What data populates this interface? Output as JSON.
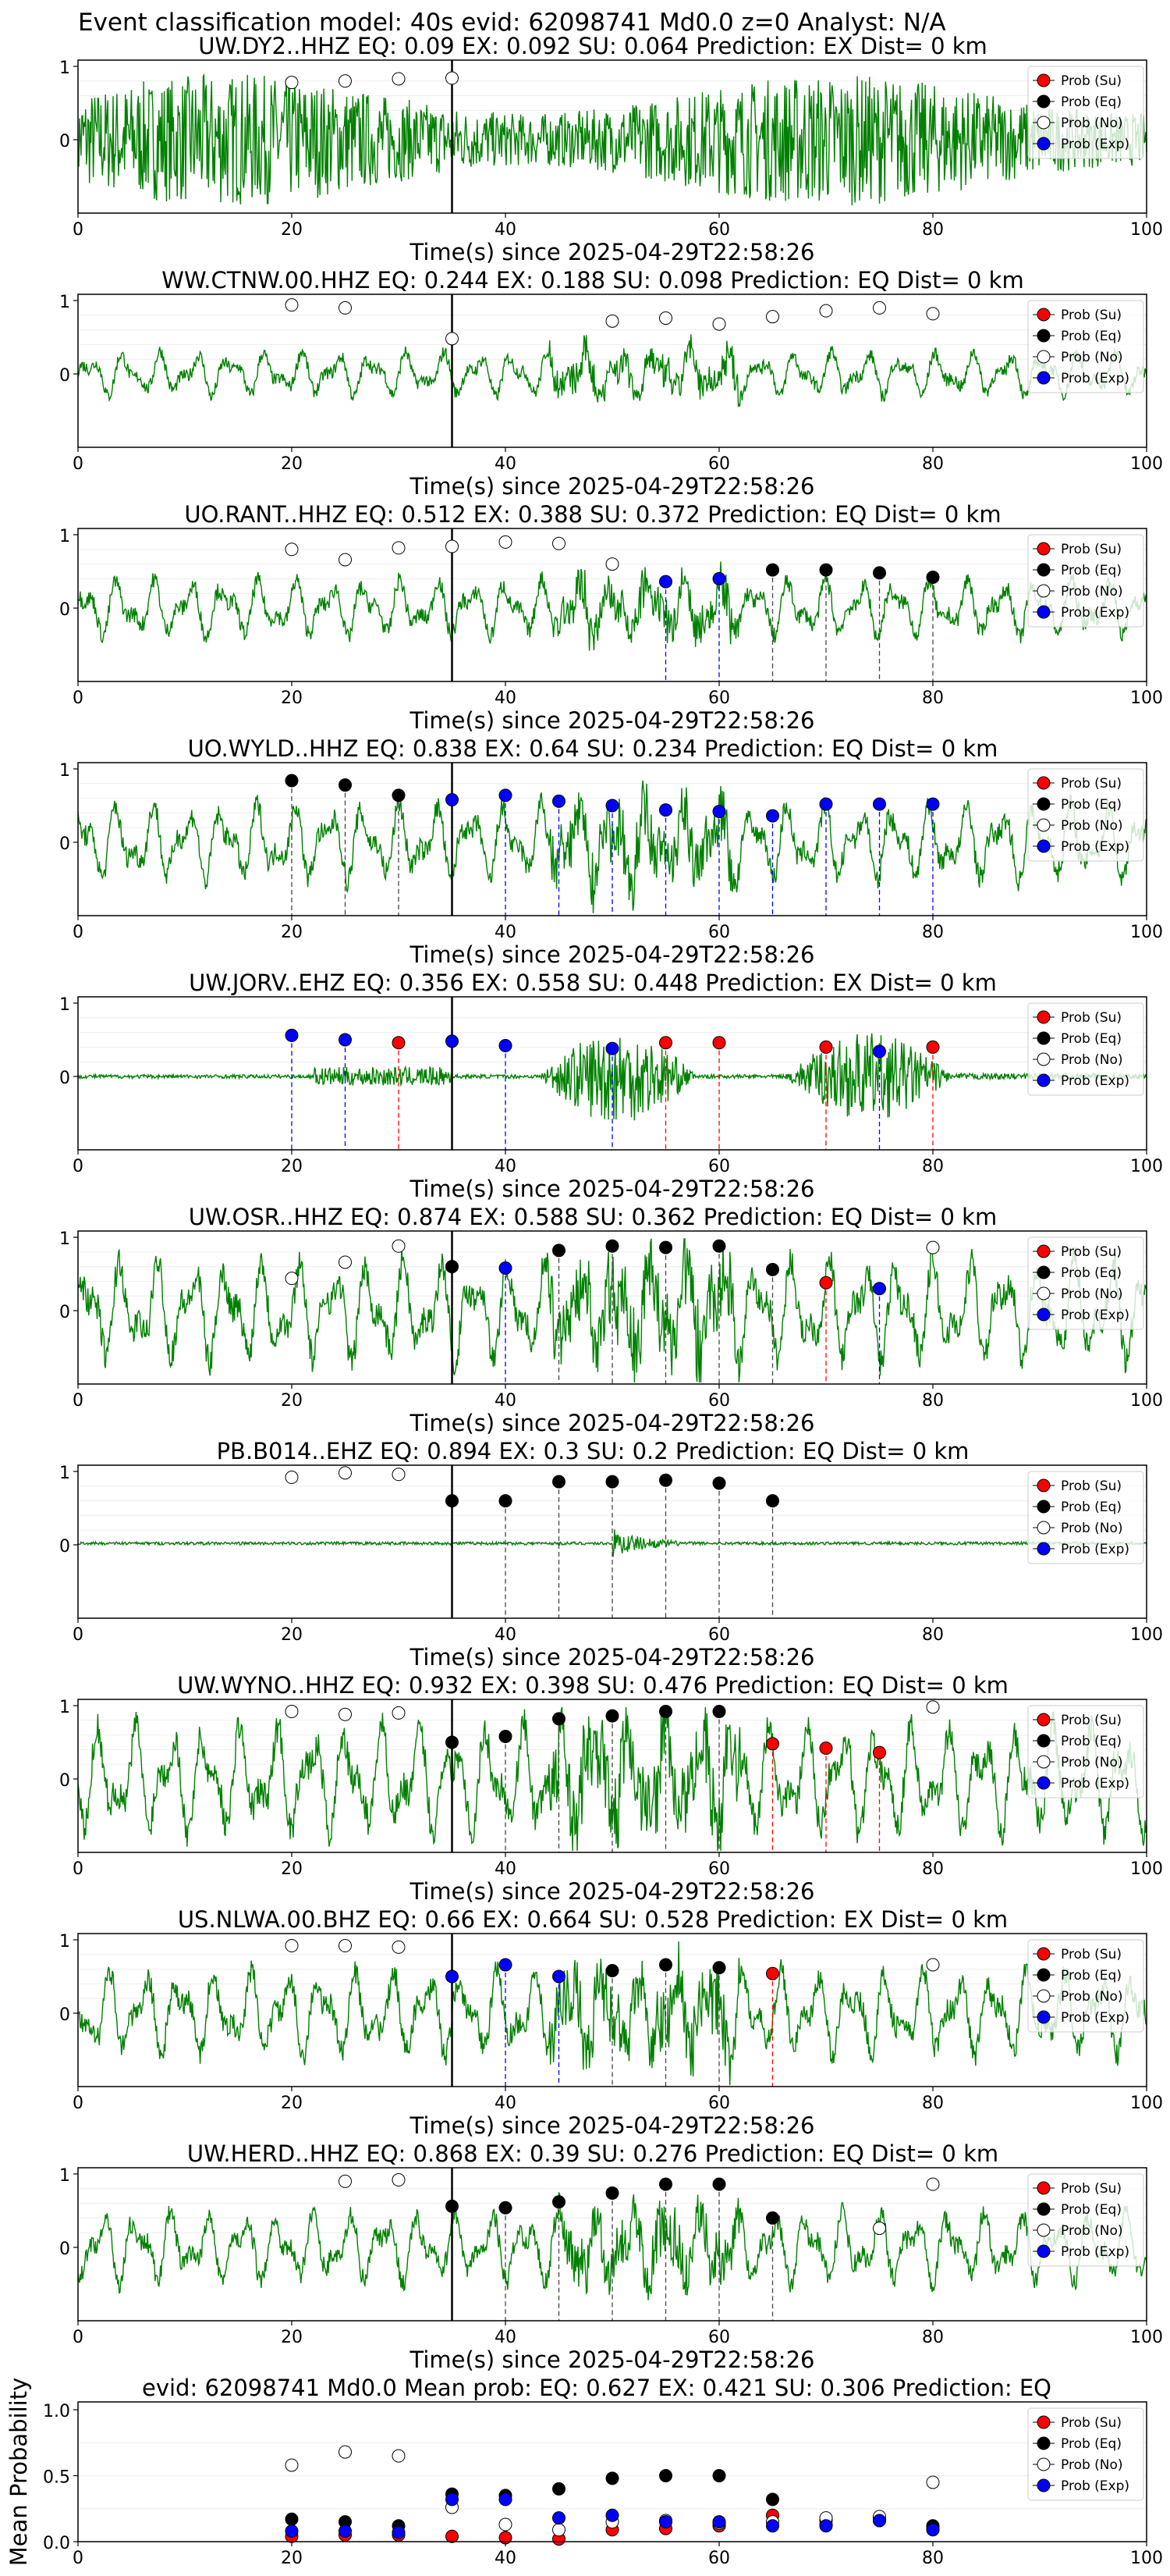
{
  "suptitle": "Event classification model: 40s evid: 62098741 Md0.0 z=0 Analyst: N/A",
  "legend": [
    "Prob (Su)",
    "Prob (Eq)",
    "Prob (No)",
    "Prob (Exp)"
  ],
  "colors": {
    "su": "#ff0000",
    "eq": "#000000",
    "no": "#ffffff",
    "exp": "#0000ff",
    "trace": "#008000",
    "arrival": "#000000"
  },
  "xlabel": "Time(s) since 2025-04-29T22:58:26",
  "xticks": [
    "0",
    "20",
    "40",
    "60",
    "80",
    "100"
  ],
  "yticks": [
    "0",
    "1"
  ],
  "chart_data": [
    {
      "type": "line",
      "station": "UW.DY2..HHZ",
      "title": "UW.DY2..HHZ   EQ: 0.09   EX: 0.092   SU: 0.064   Prediction: EX    Dist= 0 km",
      "xlim": [
        0,
        100
      ],
      "ylim": [
        -1,
        1
      ],
      "arrival": 35,
      "style": "dense",
      "amp": 0.9,
      "points": [
        {
          "x": 20,
          "y": 0.78,
          "c": "no"
        },
        {
          "x": 25,
          "y": 0.8,
          "c": "no"
        },
        {
          "x": 30,
          "y": 0.83,
          "c": "no"
        },
        {
          "x": 35,
          "y": 0.84,
          "c": "no"
        }
      ]
    },
    {
      "type": "line",
      "station": "WW.CTNW.00.HHZ",
      "title": "WW.CTNW.00.HHZ   EQ: 0.244  EX: 0.188  SU: 0.098   Prediction: EQ    Dist= 0 km",
      "xlim": [
        0,
        100
      ],
      "ylim": [
        -1,
        1
      ],
      "arrival": 35,
      "style": "wavy",
      "amp": 0.35,
      "points": [
        {
          "x": 20,
          "y": 0.94,
          "c": "no"
        },
        {
          "x": 25,
          "y": 0.9,
          "c": "no"
        },
        {
          "x": 35,
          "y": 0.48,
          "c": "no"
        },
        {
          "x": 50,
          "y": 0.72,
          "c": "no"
        },
        {
          "x": 55,
          "y": 0.76,
          "c": "no"
        },
        {
          "x": 60,
          "y": 0.68,
          "c": "no"
        },
        {
          "x": 65,
          "y": 0.78,
          "c": "no"
        },
        {
          "x": 70,
          "y": 0.86,
          "c": "no"
        },
        {
          "x": 75,
          "y": 0.9,
          "c": "no"
        },
        {
          "x": 80,
          "y": 0.82,
          "c": "no"
        }
      ]
    },
    {
      "type": "line",
      "station": "UO.RANT..HHZ",
      "title": "UO.RANT..HHZ   EQ: 0.512  EX: 0.388  SU: 0.372   Prediction: EQ    Dist= 0 km",
      "xlim": [
        0,
        100
      ],
      "ylim": [
        -1,
        1
      ],
      "arrival": 35,
      "style": "wavy",
      "amp": 0.45,
      "points": [
        {
          "x": 20,
          "y": 0.8,
          "c": "no"
        },
        {
          "x": 25,
          "y": 0.66,
          "c": "no"
        },
        {
          "x": 30,
          "y": 0.82,
          "c": "no"
        },
        {
          "x": 35,
          "y": 0.84,
          "c": "no"
        },
        {
          "x": 40,
          "y": 0.9,
          "c": "no"
        },
        {
          "x": 45,
          "y": 0.88,
          "c": "no"
        },
        {
          "x": 50,
          "y": 0.6,
          "c": "no"
        },
        {
          "x": 55,
          "y": 0.36,
          "c": "exp"
        },
        {
          "x": 60,
          "y": 0.4,
          "c": "exp"
        },
        {
          "x": 65,
          "y": 0.52,
          "c": "eq"
        },
        {
          "x": 70,
          "y": 0.52,
          "c": "eq"
        },
        {
          "x": 75,
          "y": 0.48,
          "c": "eq"
        },
        {
          "x": 80,
          "y": 0.42,
          "c": "eq"
        }
      ]
    },
    {
      "type": "line",
      "station": "UO.WYLD..HHZ",
      "title": "UO.WYLD..HHZ   EQ: 0.838  EX: 0.64  SU: 0.234   Prediction: EQ    Dist= 0 km",
      "xlim": [
        0,
        100
      ],
      "ylim": [
        -1,
        1
      ],
      "arrival": 35,
      "style": "wavy",
      "amp": 0.6,
      "points": [
        {
          "x": 20,
          "y": 0.84,
          "c": "eq"
        },
        {
          "x": 25,
          "y": 0.78,
          "c": "eq"
        },
        {
          "x": 30,
          "y": 0.64,
          "c": "eq"
        },
        {
          "x": 35,
          "y": 0.58,
          "c": "exp"
        },
        {
          "x": 40,
          "y": 0.64,
          "c": "exp"
        },
        {
          "x": 45,
          "y": 0.56,
          "c": "exp"
        },
        {
          "x": 50,
          "y": 0.5,
          "c": "exp"
        },
        {
          "x": 55,
          "y": 0.44,
          "c": "exp"
        },
        {
          "x": 60,
          "y": 0.42,
          "c": "exp"
        },
        {
          "x": 65,
          "y": 0.36,
          "c": "exp"
        },
        {
          "x": 70,
          "y": 0.52,
          "c": "exp"
        },
        {
          "x": 75,
          "y": 0.52,
          "c": "exp"
        },
        {
          "x": 80,
          "y": 0.52,
          "c": "exp"
        }
      ]
    },
    {
      "type": "line",
      "station": "UW.JORV..EHZ",
      "title": "UW.JORV..EHZ   EQ: 0.356  EX: 0.558  SU: 0.448   Prediction: EX    Dist= 0 km",
      "xlim": [
        0,
        100
      ],
      "ylim": [
        -1,
        1
      ],
      "arrival": 35,
      "style": "bursts",
      "amp": 0.85,
      "points": [
        {
          "x": 20,
          "y": 0.56,
          "c": "exp"
        },
        {
          "x": 25,
          "y": 0.5,
          "c": "exp"
        },
        {
          "x": 30,
          "y": 0.46,
          "c": "su"
        },
        {
          "x": 35,
          "y": 0.48,
          "c": "exp"
        },
        {
          "x": 40,
          "y": 0.42,
          "c": "exp"
        },
        {
          "x": 50,
          "y": 0.38,
          "c": "exp"
        },
        {
          "x": 55,
          "y": 0.46,
          "c": "su"
        },
        {
          "x": 60,
          "y": 0.46,
          "c": "su"
        },
        {
          "x": 70,
          "y": 0.4,
          "c": "su"
        },
        {
          "x": 75,
          "y": 0.34,
          "c": "exp"
        },
        {
          "x": 80,
          "y": 0.4,
          "c": "su"
        }
      ]
    },
    {
      "type": "line",
      "station": "UW.OSR..HHZ",
      "title": "UW.OSR..HHZ   EQ: 0.874  EX: 0.588  SU: 0.362   Prediction: EQ    Dist= 0 km",
      "xlim": [
        0,
        100
      ],
      "ylim": [
        -1,
        1
      ],
      "arrival": 35,
      "style": "wavy",
      "amp": 0.8,
      "points": [
        {
          "x": 20,
          "y": 0.44,
          "c": "no"
        },
        {
          "x": 25,
          "y": 0.66,
          "c": "no"
        },
        {
          "x": 30,
          "y": 0.88,
          "c": "no"
        },
        {
          "x": 35,
          "y": 0.6,
          "c": "eq"
        },
        {
          "x": 40,
          "y": 0.58,
          "c": "exp"
        },
        {
          "x": 45,
          "y": 0.82,
          "c": "eq"
        },
        {
          "x": 50,
          "y": 0.88,
          "c": "eq"
        },
        {
          "x": 55,
          "y": 0.86,
          "c": "eq"
        },
        {
          "x": 60,
          "y": 0.88,
          "c": "eq"
        },
        {
          "x": 65,
          "y": 0.56,
          "c": "eq"
        },
        {
          "x": 70,
          "y": 0.38,
          "c": "su"
        },
        {
          "x": 75,
          "y": 0.3,
          "c": "exp"
        },
        {
          "x": 80,
          "y": 0.86,
          "c": "no"
        }
      ]
    },
    {
      "type": "line",
      "station": "PB.B014..EHZ",
      "title": "PB.B014..EHZ   EQ: 0.894  EX: 0.3  SU: 0.2   Prediction: EQ    Dist= 0 km",
      "xlim": [
        0,
        100
      ],
      "ylim": [
        -1,
        1
      ],
      "arrival": 35,
      "style": "quiet",
      "amp": 0.4,
      "points": [
        {
          "x": 20,
          "y": 0.92,
          "c": "no"
        },
        {
          "x": 25,
          "y": 0.98,
          "c": "no"
        },
        {
          "x": 30,
          "y": 0.96,
          "c": "no"
        },
        {
          "x": 35,
          "y": 0.6,
          "c": "eq"
        },
        {
          "x": 40,
          "y": 0.6,
          "c": "eq"
        },
        {
          "x": 45,
          "y": 0.86,
          "c": "eq"
        },
        {
          "x": 50,
          "y": 0.86,
          "c": "eq"
        },
        {
          "x": 55,
          "y": 0.88,
          "c": "eq"
        },
        {
          "x": 60,
          "y": 0.84,
          "c": "eq"
        },
        {
          "x": 65,
          "y": 0.6,
          "c": "eq"
        }
      ]
    },
    {
      "type": "line",
      "station": "UW.WYNO..HHZ",
      "title": "UW.WYNO..HHZ   EQ: 0.932  EX: 0.398  SU: 0.476   Prediction: EQ    Dist= 0 km",
      "xlim": [
        0,
        100
      ],
      "ylim": [
        -1,
        1
      ],
      "arrival": 35,
      "style": "wavy",
      "amp": 0.85,
      "points": [
        {
          "x": 20,
          "y": 0.92,
          "c": "no"
        },
        {
          "x": 25,
          "y": 0.88,
          "c": "no"
        },
        {
          "x": 30,
          "y": 0.9,
          "c": "no"
        },
        {
          "x": 35,
          "y": 0.5,
          "c": "eq"
        },
        {
          "x": 40,
          "y": 0.58,
          "c": "eq"
        },
        {
          "x": 45,
          "y": 0.82,
          "c": "eq"
        },
        {
          "x": 50,
          "y": 0.86,
          "c": "eq"
        },
        {
          "x": 55,
          "y": 0.92,
          "c": "eq"
        },
        {
          "x": 60,
          "y": 0.92,
          "c": "eq"
        },
        {
          "x": 65,
          "y": 0.48,
          "c": "su"
        },
        {
          "x": 70,
          "y": 0.42,
          "c": "su"
        },
        {
          "x": 75,
          "y": 0.36,
          "c": "su"
        },
        {
          "x": 80,
          "y": 0.98,
          "c": "no"
        }
      ]
    },
    {
      "type": "line",
      "station": "US.NLWA.00.BHZ",
      "title": "US.NLWA.00.BHZ   EQ: 0.66  EX: 0.664  SU: 0.528   Prediction: EX    Dist= 0 km",
      "xlim": [
        0,
        100
      ],
      "ylim": [
        -1,
        1
      ],
      "arrival": 35,
      "style": "wavy",
      "amp": 0.65,
      "points": [
        {
          "x": 20,
          "y": 0.92,
          "c": "no"
        },
        {
          "x": 25,
          "y": 0.92,
          "c": "no"
        },
        {
          "x": 30,
          "y": 0.9,
          "c": "no"
        },
        {
          "x": 35,
          "y": 0.5,
          "c": "exp"
        },
        {
          "x": 40,
          "y": 0.66,
          "c": "exp"
        },
        {
          "x": 45,
          "y": 0.5,
          "c": "exp"
        },
        {
          "x": 50,
          "y": 0.58,
          "c": "eq"
        },
        {
          "x": 55,
          "y": 0.66,
          "c": "eq"
        },
        {
          "x": 60,
          "y": 0.62,
          "c": "eq"
        },
        {
          "x": 65,
          "y": 0.54,
          "c": "su"
        },
        {
          "x": 80,
          "y": 0.66,
          "c": "no"
        }
      ]
    },
    {
      "type": "line",
      "station": "UW.HERD..HHZ",
      "title": "UW.HERD..HHZ   EQ: 0.868  EX: 0.39  SU: 0.276   Prediction: EQ    Dist= 0 km",
      "xlim": [
        0,
        100
      ],
      "ylim": [
        -1,
        1
      ],
      "arrival": 35,
      "style": "wavy",
      "amp": 0.55,
      "points": [
        {
          "x": 25,
          "y": 0.9,
          "c": "no"
        },
        {
          "x": 30,
          "y": 0.92,
          "c": "no"
        },
        {
          "x": 35,
          "y": 0.56,
          "c": "eq"
        },
        {
          "x": 40,
          "y": 0.54,
          "c": "eq"
        },
        {
          "x": 45,
          "y": 0.62,
          "c": "eq"
        },
        {
          "x": 50,
          "y": 0.74,
          "c": "eq"
        },
        {
          "x": 55,
          "y": 0.86,
          "c": "eq"
        },
        {
          "x": 60,
          "y": 0.86,
          "c": "eq"
        },
        {
          "x": 65,
          "y": 0.4,
          "c": "eq"
        },
        {
          "x": 75,
          "y": 0.26,
          "c": "no"
        },
        {
          "x": 80,
          "y": 0.86,
          "c": "no"
        }
      ]
    },
    {
      "type": "scatter",
      "title": "evid: 62098741  Md0.0   Mean prob:   EQ: 0.627  EX: 0.421  SU: 0.306   Prediction: EQ",
      "ylabel": "Mean Probability",
      "xlim": [
        0,
        100
      ],
      "ylim": [
        0,
        1
      ],
      "yticks": [
        "0.0",
        "0.5",
        "1.0"
      ],
      "series": [
        {
          "name": "Prob (Su)",
          "c": "su",
          "x": [
            20,
            25,
            30,
            35,
            40,
            45,
            50,
            55,
            60,
            65,
            70,
            75,
            80
          ],
          "y": [
            0.04,
            0.05,
            0.05,
            0.04,
            0.03,
            0.02,
            0.09,
            0.1,
            0.12,
            0.2,
            0.16,
            0.16,
            0.1
          ]
        },
        {
          "name": "Prob (Eq)",
          "c": "eq",
          "x": [
            20,
            25,
            30,
            35,
            40,
            45,
            50,
            55,
            60,
            65,
            70,
            75,
            80
          ],
          "y": [
            0.17,
            0.15,
            0.12,
            0.36,
            0.35,
            0.4,
            0.48,
            0.5,
            0.5,
            0.32,
            0.13,
            0.17,
            0.12
          ]
        },
        {
          "name": "Prob (No)",
          "c": "no",
          "x": [
            20,
            25,
            30,
            35,
            40,
            45,
            50,
            55,
            60,
            65,
            70,
            75,
            80
          ],
          "y": [
            0.58,
            0.68,
            0.65,
            0.26,
            0.13,
            0.09,
            0.15,
            0.16,
            0.14,
            0.15,
            0.18,
            0.19,
            0.45
          ]
        },
        {
          "name": "Prob (Exp)",
          "c": "exp",
          "x": [
            20,
            25,
            30,
            35,
            40,
            45,
            50,
            55,
            60,
            65,
            70,
            75,
            80
          ],
          "y": [
            0.08,
            0.08,
            0.07,
            0.32,
            0.32,
            0.18,
            0.2,
            0.15,
            0.15,
            0.12,
            0.12,
            0.16,
            0.09
          ]
        }
      ]
    }
  ]
}
